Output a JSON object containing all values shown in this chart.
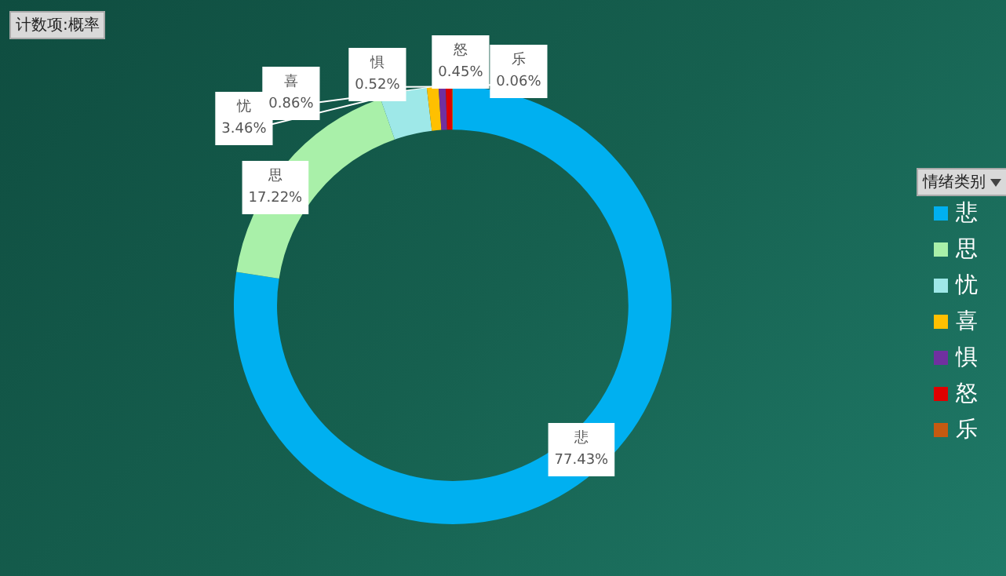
{
  "chart_data": {
    "type": "donut",
    "categories": [
      "悲",
      "思",
      "忧",
      "喜",
      "惧",
      "怒",
      "乐"
    ],
    "values": [
      77.43,
      17.22,
      3.46,
      0.86,
      0.52,
      0.45,
      0.06
    ],
    "colors": [
      "#00b0f0",
      "#a9f0a9",
      "#9ee8e8",
      "#ffc000",
      "#7030a0",
      "#e00000",
      "#c55a11"
    ],
    "value_labels": [
      "77.43%",
      "17.22%",
      "3.46%",
      "0.86%",
      "0.52%",
      "0.45%",
      "0.06%"
    ],
    "legend": "right",
    "legend_title": "情绪类别",
    "annotations": [
      "计数项:概率"
    ]
  }
}
